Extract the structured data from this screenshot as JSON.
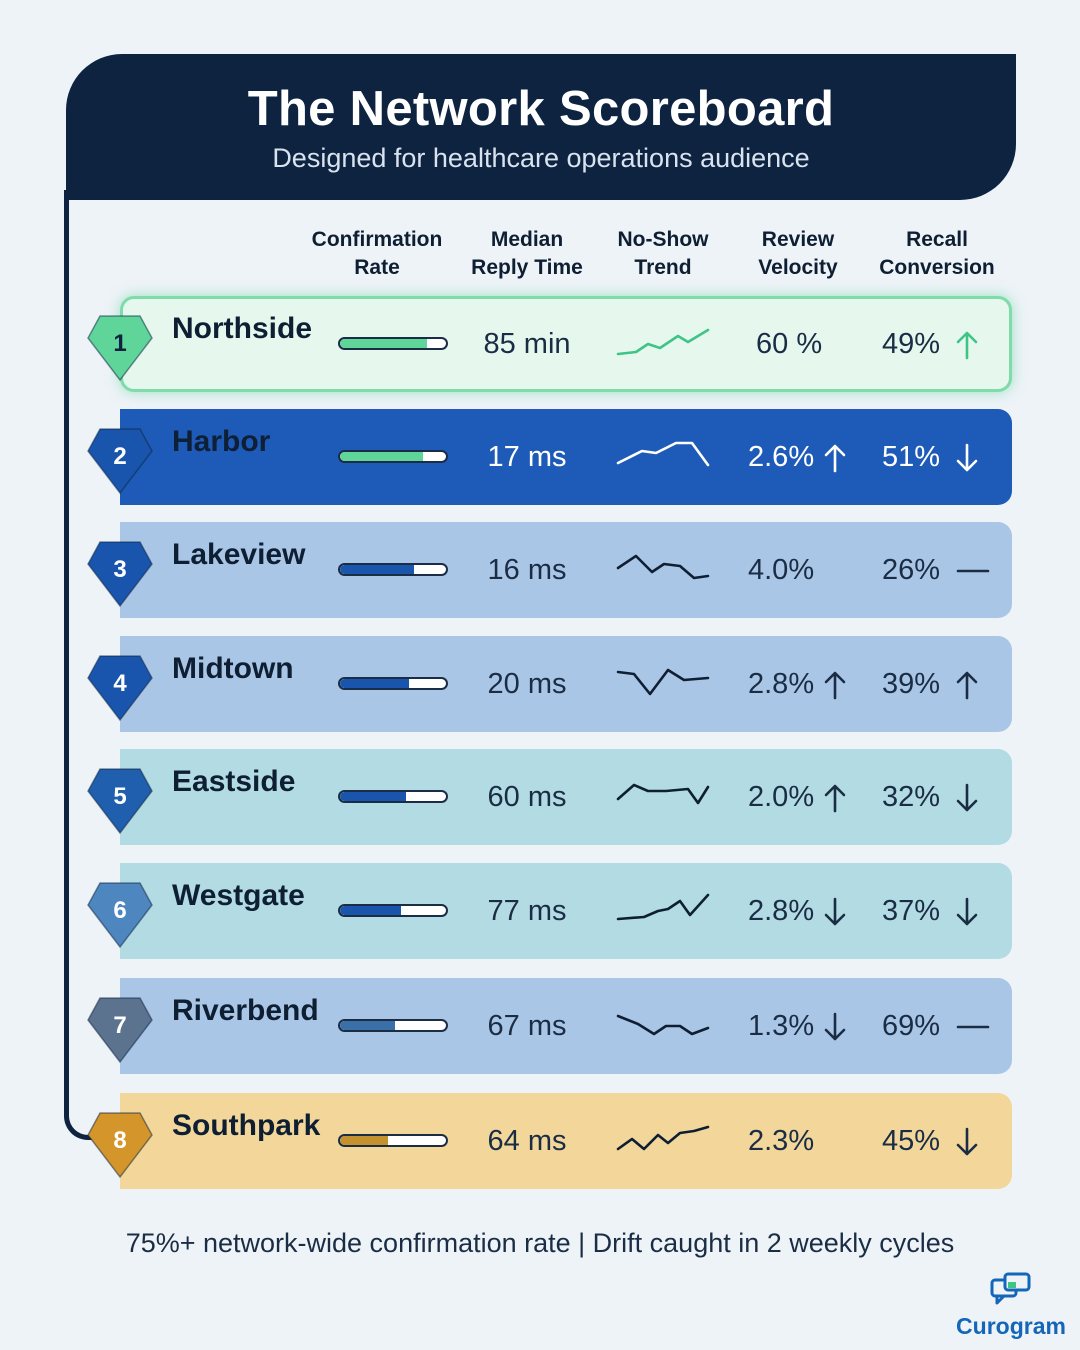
{
  "header": {
    "title": "The Network Scoreboard",
    "subtitle": "Designed for healthcare operations audience"
  },
  "columns": [
    {
      "line1": "Confirmation",
      "line2": "Rate"
    },
    {
      "line1": "Median",
      "line2": "Reply Time"
    },
    {
      "line1": "No-Show",
      "line2": "Trend"
    },
    {
      "line1": "Review",
      "line2": "Velocity"
    },
    {
      "line1": "Recall",
      "line2": "Conversion"
    }
  ],
  "rows": [
    {
      "rank": "1",
      "name": "Northside",
      "confirmation": 0.82,
      "reply": "85 min",
      "review": "60 %",
      "review_trend": "none",
      "recall": "49%",
      "recall_trend": "up"
    },
    {
      "rank": "2",
      "name": "Harbor",
      "confirmation": 0.78,
      "reply": "17 ms",
      "review": "2.6%",
      "review_trend": "up",
      "recall": "51%",
      "recall_trend": "down"
    },
    {
      "rank": "3",
      "name": "Lakeview",
      "confirmation": 0.7,
      "reply": "16 ms",
      "review": "4.0%",
      "review_trend": "none",
      "recall": "26%",
      "recall_trend": "flat"
    },
    {
      "rank": "4",
      "name": "Midtown",
      "confirmation": 0.65,
      "reply": "20 ms",
      "review": "2.8%",
      "review_trend": "up",
      "recall": "39%",
      "recall_trend": "up"
    },
    {
      "rank": "5",
      "name": "Eastside",
      "confirmation": 0.62,
      "reply": "60 ms",
      "review": "2.0%",
      "review_trend": "up",
      "recall": "32%",
      "recall_trend": "down"
    },
    {
      "rank": "6",
      "name": "Westgate",
      "confirmation": 0.58,
      "reply": "77 ms",
      "review": "2.8%",
      "review_trend": "down",
      "recall": "37%",
      "recall_trend": "down"
    },
    {
      "rank": "7",
      "name": "Riverbend",
      "confirmation": 0.52,
      "reply": "67 ms",
      "review": "1.3%",
      "review_trend": "down",
      "recall": "69%",
      "recall_trend": "flat"
    },
    {
      "rank": "8",
      "name": "Southpark",
      "confirmation": 0.45,
      "reply": "64 ms",
      "review": "2.3%",
      "review_trend": "none",
      "recall": "45%",
      "recall_trend": "down"
    }
  ],
  "footer": "75%+ network-wide confirmation rate  |  Drift caught in 2 weekly cycles",
  "logo": {
    "text": "Curogram",
    "icon": "chat-bubbles-icon"
  },
  "colors": {
    "navy": "#0e2340",
    "green": "#5fd59a",
    "blue": "#1e5bb8",
    "gold": "#d4952b"
  }
}
